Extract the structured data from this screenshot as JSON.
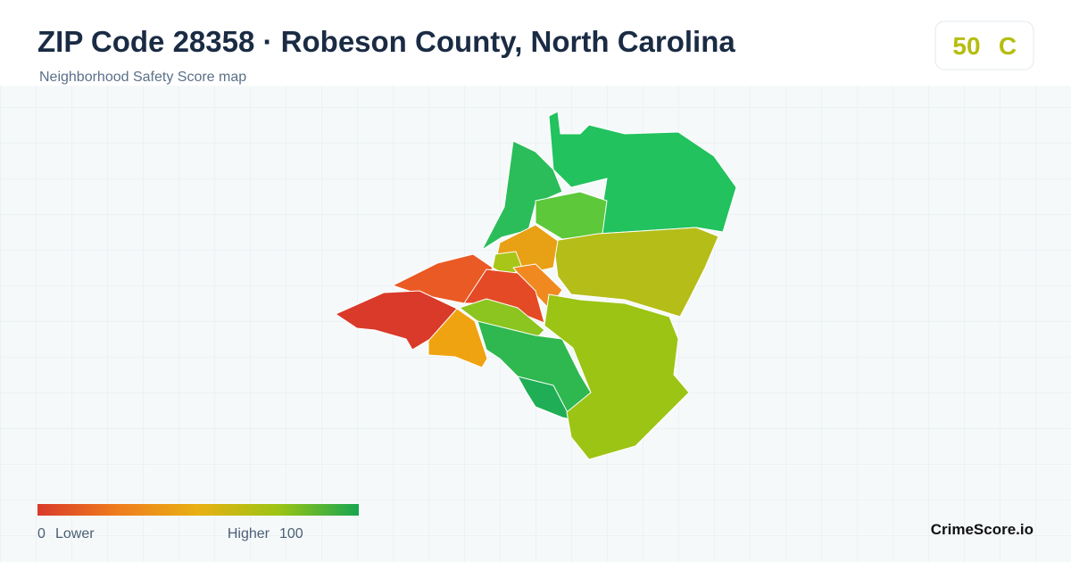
{
  "header": {
    "title": "ZIP Code 28358 · Robeson County, North Carolina",
    "subtitle": "Neighborhood Safety Score map"
  },
  "score": {
    "value": "50",
    "grade": "C"
  },
  "legend": {
    "min": "0",
    "low_label": "Lower",
    "high_label": "Higher",
    "max": "100"
  },
  "brand": "CrimeScore.io"
}
